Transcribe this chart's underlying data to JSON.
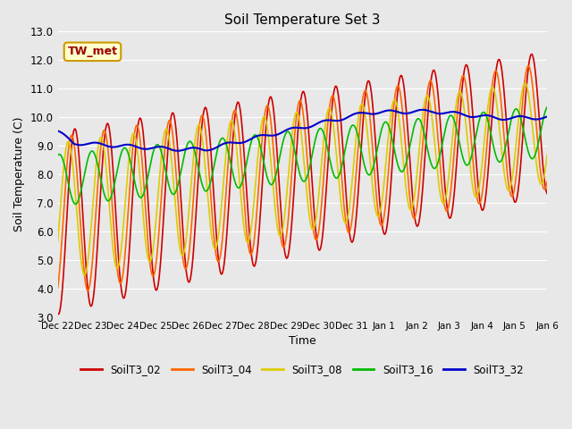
{
  "title": "Soil Temperature Set 3",
  "xlabel": "Time",
  "ylabel": "Soil Temperature (C)",
  "ylim": [
    3.0,
    13.0
  ],
  "yticks": [
    3.0,
    4.0,
    5.0,
    6.0,
    7.0,
    8.0,
    9.0,
    10.0,
    11.0,
    12.0,
    13.0
  ],
  "xtick_labels": [
    "Dec 22",
    "Dec 23",
    "Dec 24",
    "Dec 25",
    "Dec 26",
    "Dec 27",
    "Dec 28",
    "Dec 29",
    "Dec 30",
    "Dec 31",
    "Jan 1",
    "Jan 2",
    "Jan 3",
    "Jan 4",
    "Jan 5",
    "Jan 6"
  ],
  "annotation_text": "TW_met",
  "annotation_color": "#990000",
  "annotation_bg": "#ffffcc",
  "annotation_border": "#cc9900",
  "colors": {
    "SoilT3_02": "#cc0000",
    "SoilT3_04": "#ff6600",
    "SoilT3_08": "#ddcc00",
    "SoilT3_16": "#00bb00",
    "SoilT3_32": "#0000cc"
  },
  "bg_color": "#e8e8e8",
  "plot_bg": "#e8e8e8",
  "grid_color": "#ffffff"
}
